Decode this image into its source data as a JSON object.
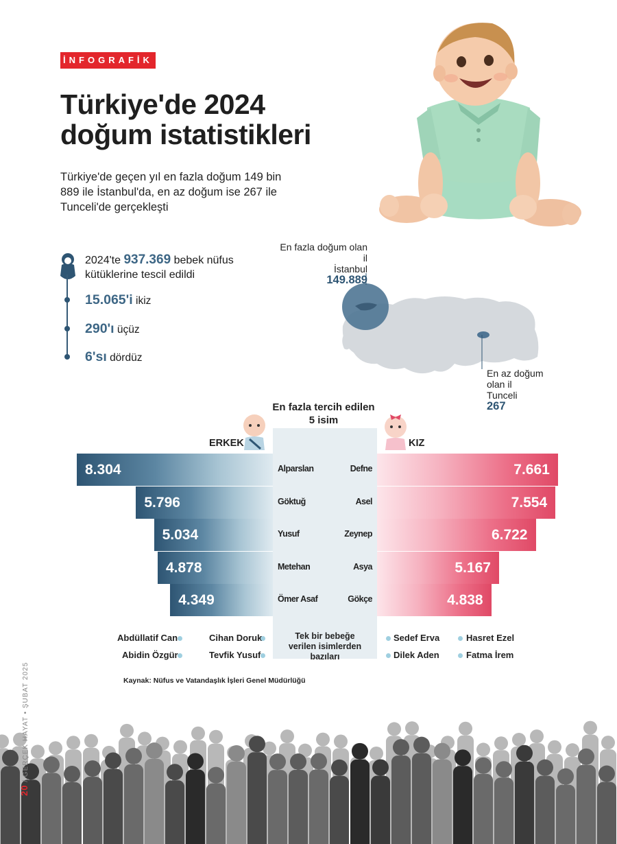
{
  "tag": "İNFOGRAFİK",
  "title_line1": "Türkiye'de 2024",
  "title_line2": "doğum istatistikleri",
  "subtitle": "Türkiye'de geçen yıl en fazla doğum 149 bin 889 ile İstanbul'da, en az doğum ise 267 ile Tunceli'de gerçekleşti",
  "stats": {
    "main_prefix": "2024'te",
    "main_number": "937.369",
    "main_suffix": "bebek nüfus kütüklerine tescil edildi",
    "twins_number": "15.065'i",
    "twins_label": "ikiz",
    "triplets_number": "290'ı",
    "triplets_label": "üçüz",
    "quads_number": "6'sı",
    "quads_label": "dördüz"
  },
  "map": {
    "max_label": "En fazla doğum olan il",
    "max_city": "İstanbul",
    "max_value": "149.889",
    "min_label": "En az doğum olan il",
    "min_city": "Tunceli",
    "min_value": "267",
    "colors": {
      "land": "#d5d9dd",
      "highlight": "#4f7594"
    }
  },
  "chart_data": {
    "type": "bar",
    "title": "En fazla tercih edilen 5 isim",
    "series": [
      {
        "name": "ERKEK",
        "categories": [
          "Alparslan",
          "Göktuğ",
          "Yusuf",
          "Metehan",
          "Ömer Asaf"
        ],
        "values": [
          8304,
          5796,
          5034,
          4878,
          4349
        ],
        "labels": [
          "8.304",
          "5.796",
          "5.034",
          "4.878",
          "4.349"
        ],
        "color": "#2e5573"
      },
      {
        "name": "KIZ",
        "categories": [
          "Defne",
          "Asel",
          "Zeynep",
          "Asya",
          "Gökçe"
        ],
        "values": [
          7661,
          7554,
          6722,
          5167,
          4838
        ],
        "labels": [
          "7.661",
          "7.554",
          "6.722",
          "5.167",
          "4.838"
        ],
        "color": "#e04966"
      }
    ]
  },
  "unique_names": {
    "title": "Tek bir bebeğe verilen isimlerden bazıları",
    "boys": [
      "Abdüllatif Can",
      "Cihan Doruk",
      "Abidin Özgür",
      "Tevfik Yusuf"
    ],
    "girls": [
      "Sedef Erva",
      "Hasret Ezel",
      "Dilek Aden",
      "Fatma İrem"
    ]
  },
  "source": "Kaynak: Nüfus ve Vatandaşlık İşleri Genel Müdürlüğü",
  "footer": {
    "page": "20",
    "magazine": "GERÇEK HAYAT",
    "date": "ŞUBAT 2025"
  }
}
